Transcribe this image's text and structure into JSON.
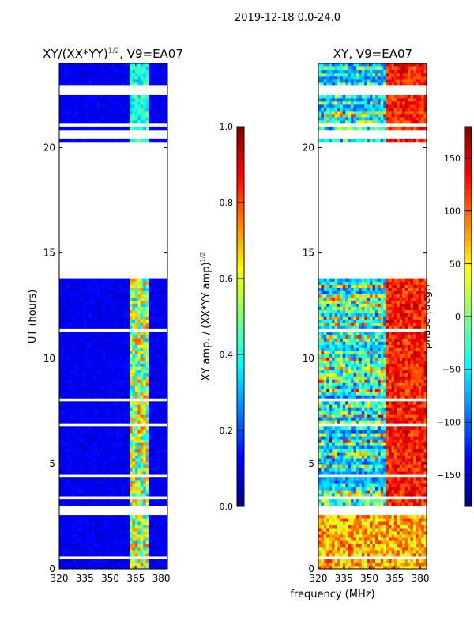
{
  "suptitle": "2019-12-18 0.0-24.0",
  "xlabel": "frequency (MHz)",
  "chart_data": [
    {
      "type": "heatmap",
      "title": "XY/(XX*YY)",
      "title_sup": "1/2",
      "title_suffix": ", V9=EA07",
      "xlabel": "",
      "ylabel": "UT (hours)",
      "xlim": [
        320,
        383.7
      ],
      "ylim": [
        0,
        24
      ],
      "xticks": [
        "320",
        "335",
        "350",
        "365",
        "380"
      ],
      "yticks": [
        "0",
        "5",
        "10",
        "15",
        "20"
      ],
      "colormap": "jet",
      "quantity": "amplitude",
      "bright_band_mhz": [
        361,
        373
      ],
      "colorbar": {
        "label": "XY amp. / (XX*YY amp)",
        "label_sup": "1/2",
        "ticks": [
          "0.0",
          "0.2",
          "0.4",
          "0.6",
          "0.8",
          "1.0"
        ],
        "range": [
          0,
          1
        ]
      }
    },
    {
      "type": "heatmap",
      "title": "XY, V9=EA07",
      "xlabel": "",
      "ylabel": "",
      "xlim": [
        320,
        383.7
      ],
      "ylim": [
        0,
        24
      ],
      "xticks": [
        "320",
        "335",
        "350",
        "365",
        "380"
      ],
      "yticks": [
        "0",
        "5",
        "10",
        "15",
        "20"
      ],
      "colormap": "jet",
      "quantity": "phase",
      "colorbar": {
        "label": "phase (deg.)",
        "ticks": [
          "−150",
          "−100",
          "−50",
          "0",
          "50",
          "100",
          "150"
        ],
        "tick_values": [
          -150,
          -100,
          -50,
          0,
          50,
          100,
          150
        ],
        "range": [
          -180,
          180
        ]
      }
    }
  ],
  "flagged_ut_hours": [
    [
      0.45,
      0.6
    ],
    [
      1.45,
      1.55
    ],
    [
      2.55,
      3.05
    ],
    [
      3.3,
      3.4
    ],
    [
      4.4,
      4.5
    ],
    [
      5.1,
      5.15
    ],
    [
      6.7,
      6.85
    ],
    [
      8.0,
      8.1
    ],
    [
      10.75,
      10.85
    ],
    [
      11.3,
      11.4
    ],
    [
      13.85,
      20.2
    ],
    [
      20.45,
      20.9
    ],
    [
      21.05,
      21.1
    ],
    [
      22.55,
      23.0
    ]
  ]
}
